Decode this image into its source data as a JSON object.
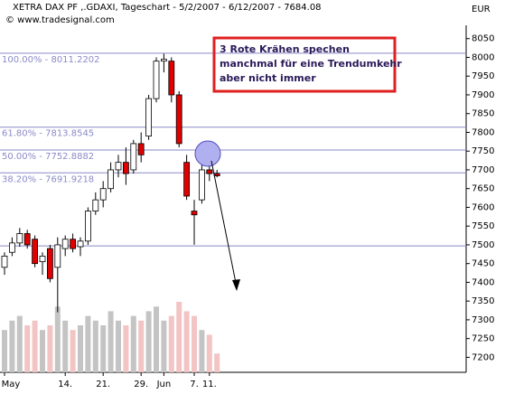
{
  "chart_data": {
    "type": "candlestick",
    "title": "XETRA DAX PF ,.GDAXI, Tageschart - 5/2/2007 - 6/12/2007 - 7684.08",
    "subtitle": "© www.tradesignal.com",
    "currency": "EUR",
    "annotation": [
      "3 Rote Krähen spechen",
      "manchmal für eine Trendumkehr",
      "aber nicht immer"
    ],
    "categories": [
      "May",
      null,
      null,
      null,
      null,
      null,
      null,
      null,
      "14.",
      null,
      null,
      null,
      null,
      "21.",
      null,
      null,
      null,
      null,
      "29.",
      null,
      null,
      "Jun",
      null,
      null,
      null,
      "7.",
      null,
      "11.",
      null
    ],
    "open": [
      7440,
      7480,
      7505,
      7530,
      7515,
      7455,
      7490,
      7440,
      7490,
      7515,
      7495,
      7510,
      7590,
      7620,
      7650,
      7700,
      7720,
      7700,
      7770,
      7790,
      7890,
      7990,
      7990,
      7900,
      7720,
      7590,
      7620,
      7700,
      7690
    ],
    "high": [
      7480,
      7520,
      7545,
      7540,
      7525,
      7480,
      7500,
      7520,
      7525,
      7530,
      7520,
      7600,
      7640,
      7670,
      7720,
      7740,
      7760,
      7780,
      7800,
      7900,
      8000,
      8010,
      8000,
      7910,
      7740,
      7620,
      7720,
      7720,
      7700
    ],
    "low": [
      7420,
      7470,
      7495,
      7490,
      7440,
      7420,
      7400,
      7320,
      7470,
      7480,
      7470,
      7500,
      7580,
      7600,
      7640,
      7680,
      7660,
      7690,
      7720,
      7780,
      7880,
      7960,
      7880,
      7760,
      7620,
      7500,
      7610,
      7670,
      7680
    ],
    "close": [
      7470,
      7505,
      7530,
      7500,
      7450,
      7470,
      7410,
      7500,
      7515,
      7490,
      7510,
      7590,
      7620,
      7650,
      7700,
      7720,
      7690,
      7770,
      7740,
      7890,
      7990,
      7995,
      7900,
      7770,
      7630,
      7580,
      7700,
      7690,
      7684.08
    ],
    "volume": [
      45,
      55,
      60,
      50,
      55,
      45,
      50,
      70,
      55,
      45,
      50,
      60,
      55,
      50,
      65,
      55,
      50,
      60,
      55,
      65,
      70,
      55,
      60,
      75,
      65,
      60,
      45,
      40,
      20
    ],
    "up_color": "#ffffff",
    "down_color": "#e00000",
    "volume_up_color": "#c4c4c4",
    "volume_down_color": "#f2c4c4",
    "level_color": "#8a8ac8",
    "levels": [
      {
        "value": 8011.2202,
        "label": "100.00% - 8011.2202"
      },
      {
        "value": 7813.8545,
        "label": "61.80% - 7813.8545"
      },
      {
        "value": 7752.8882,
        "label": "50.00% - 7752.8882"
      },
      {
        "value": 7691.9218,
        "label": "38.20% - 7691.9218"
      },
      {
        "value": 7497,
        "label": null
      }
    ],
    "ylim": [
      7160,
      8100
    ],
    "yticks": [
      7200,
      7250,
      7300,
      7350,
      7400,
      7450,
      7500,
      7550,
      7600,
      7650,
      7700,
      7750,
      7800,
      7850,
      7900,
      7950,
      8000,
      8050
    ]
  }
}
